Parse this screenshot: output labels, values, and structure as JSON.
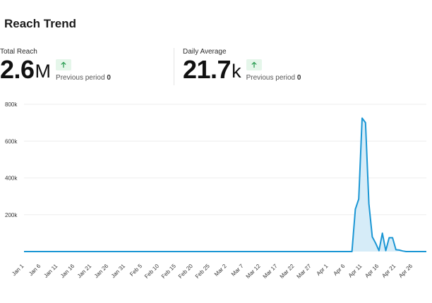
{
  "header": {
    "title": "Reach Trend"
  },
  "stats": [
    {
      "label": "Total Reach",
      "value": "2.6",
      "unit": "M",
      "trend_icon": "arrow-up-icon",
      "previous_label": "Previous period",
      "previous_value": "0"
    },
    {
      "label": "Daily Average",
      "value": "21.7",
      "unit": "k",
      "trend_icon": "arrow-up-icon",
      "previous_label": "Previous period",
      "previous_value": "0"
    }
  ],
  "colors": {
    "line": "#1a96d4",
    "fill": "#d6ecf8",
    "badge_bg": "#e5f6ea",
    "badge_arrow": "#2e9e55",
    "grid": "#eeeeee"
  },
  "chart_data": {
    "type": "area",
    "title": "",
    "xlabel": "",
    "ylabel": "",
    "ylim": [
      0,
      800000
    ],
    "yticks": [
      "800k",
      "600k",
      "400k",
      "200k"
    ],
    "ytick_values": [
      800000,
      600000,
      400000,
      200000
    ],
    "grid": true,
    "xticks": [
      "Jan 1",
      "Jan 6",
      "Jan 11",
      "Jan 16",
      "Jan 21",
      "Jan 26",
      "Jan 31",
      "Feb 5",
      "Feb 10",
      "Feb 15",
      "Feb 20",
      "Feb 25",
      "Mar 2",
      "Mar 7",
      "Mar 12",
      "Mar 17",
      "Mar 22",
      "Mar 27",
      "Apr 1",
      "Apr 6",
      "Apr 11",
      "Apr 16",
      "Apr 21",
      "Apr 26"
    ],
    "series": [
      {
        "x": [
          "Jan 1",
          "Apr 8",
          "Apr 9",
          "Apr 10",
          "Apr 11",
          "Apr 12",
          "Apr 13",
          "Apr 14",
          "Apr 15",
          "Apr 16",
          "Apr 17",
          "Apr 18",
          "Apr 19",
          "Apr 20",
          "Apr 21",
          "Apr 22",
          "Apr 23",
          "Apr 24",
          "Apr 25",
          "Apr 27",
          "Apr 30"
        ],
        "values": [
          0,
          0,
          230000,
          285000,
          725000,
          700000,
          260000,
          80000,
          45000,
          5000,
          100000,
          5000,
          75000,
          75000,
          10000,
          8000,
          3000,
          0,
          0,
          0,
          0
        ]
      }
    ]
  }
}
